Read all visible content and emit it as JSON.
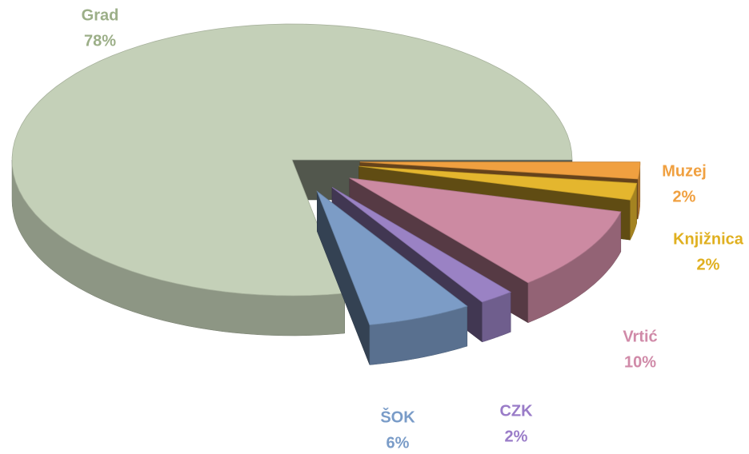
{
  "chart_data": {
    "type": "pie",
    "categories": [
      "Muzej",
      "Knjižnica",
      "Vrtić",
      "CZK",
      "ŠOK",
      "Grad"
    ],
    "values": [
      2,
      2,
      10,
      2,
      6,
      78
    ],
    "value_labels": [
      "2%",
      "2%",
      "10%",
      "2%",
      "6%",
      "78%"
    ],
    "colors": [
      "#f0a040",
      "#e4b62e",
      "#cc8aa2",
      "#9a82c4",
      "#7c9cc6",
      "#c4d0b8"
    ],
    "label_colors": [
      "#f0a040",
      "#e0b020",
      "#d08aa8",
      "#9a7cc8",
      "#7a9cc8",
      "#9caf88"
    ]
  }
}
